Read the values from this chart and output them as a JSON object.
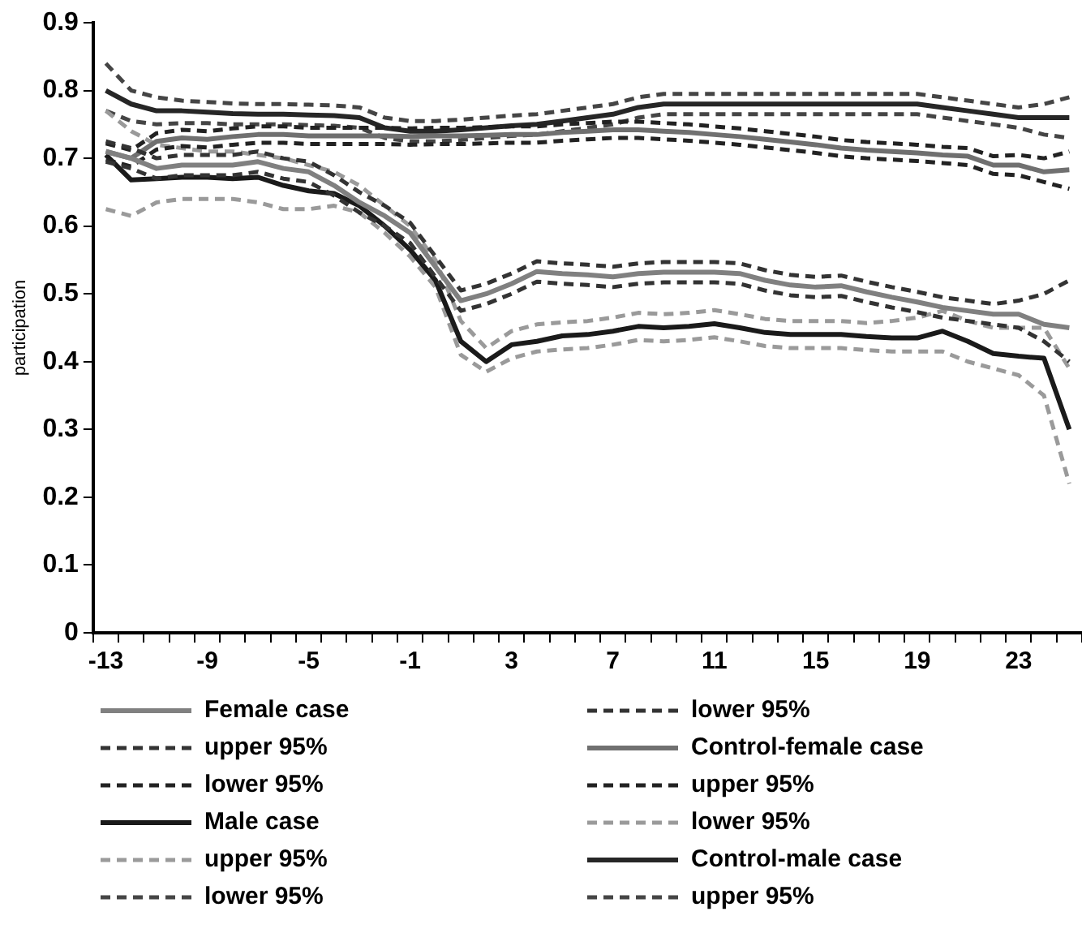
{
  "chart_data": {
    "type": "line",
    "ylabel": "participation",
    "categories": [
      "-13",
      null,
      null,
      null,
      "-9",
      null,
      null,
      null,
      "-5",
      null,
      null,
      null,
      "-1",
      null,
      null,
      null,
      "3",
      null,
      null,
      null,
      "7",
      null,
      null,
      null,
      "11",
      null,
      null,
      null,
      "15",
      null,
      null,
      null,
      "19",
      null,
      null,
      null,
      "23",
      null,
      null
    ],
    "ylim": [
      0,
      0.9
    ],
    "yticks": [
      0,
      0.1,
      0.2,
      0.3,
      0.4,
      0.5,
      0.6,
      0.7,
      0.8,
      0.9
    ],
    "grid": false,
    "legend": "bottom",
    "marker": "none",
    "series": [
      {
        "name": "Female case",
        "color": "#808080",
        "line_style": "solid",
        "values": [
          0.71,
          0.7,
          0.685,
          0.69,
          0.69,
          0.69,
          0.695,
          0.685,
          0.68,
          0.66,
          0.635,
          0.615,
          0.59,
          0.54,
          0.49,
          0.5,
          0.515,
          0.533,
          0.53,
          0.528,
          0.525,
          0.53,
          0.532,
          0.532,
          0.532,
          0.53,
          0.52,
          0.513,
          0.51,
          0.512,
          0.503,
          0.495,
          0.488,
          0.48,
          0.475,
          0.47,
          0.47,
          0.455,
          0.45
        ]
      },
      {
        "name": "lower 95%",
        "color": "#333333",
        "line_style": "dashed",
        "values": [
          0.695,
          0.685,
          0.67,
          0.675,
          0.675,
          0.675,
          0.68,
          0.67,
          0.665,
          0.645,
          0.62,
          0.6,
          0.575,
          0.525,
          0.475,
          0.485,
          0.5,
          0.518,
          0.515,
          0.513,
          0.51,
          0.515,
          0.517,
          0.517,
          0.517,
          0.515,
          0.505,
          0.498,
          0.495,
          0.497,
          0.488,
          0.48,
          0.473,
          0.465,
          0.46,
          0.455,
          0.45,
          0.43,
          0.4
        ]
      },
      {
        "name": "upper 95%",
        "color": "#333333",
        "line_style": "dashed",
        "values": [
          0.725,
          0.715,
          0.7,
          0.705,
          0.705,
          0.705,
          0.71,
          0.7,
          0.695,
          0.675,
          0.65,
          0.63,
          0.605,
          0.555,
          0.505,
          0.515,
          0.53,
          0.548,
          0.545,
          0.543,
          0.54,
          0.545,
          0.547,
          0.547,
          0.547,
          0.545,
          0.535,
          0.528,
          0.525,
          0.527,
          0.518,
          0.51,
          0.503,
          0.495,
          0.49,
          0.485,
          0.49,
          0.5,
          0.52
        ]
      },
      {
        "name": "Control-female case",
        "color": "#707070",
        "line_style": "solid",
        "values": [
          0.71,
          0.7,
          0.725,
          0.73,
          0.728,
          0.732,
          0.735,
          0.735,
          0.733,
          0.733,
          0.733,
          0.733,
          0.732,
          0.733,
          0.733,
          0.734,
          0.735,
          0.735,
          0.738,
          0.74,
          0.742,
          0.742,
          0.74,
          0.738,
          0.735,
          0.732,
          0.728,
          0.724,
          0.72,
          0.715,
          0.712,
          0.71,
          0.708,
          0.705,
          0.703,
          0.69,
          0.69,
          0.68,
          0.683
        ]
      },
      {
        "name": "lower 95%",
        "color": "#222222",
        "line_style": "dashed",
        "values": [
          0.698,
          0.688,
          0.713,
          0.718,
          0.716,
          0.72,
          0.723,
          0.723,
          0.721,
          0.721,
          0.721,
          0.721,
          0.72,
          0.721,
          0.721,
          0.722,
          0.723,
          0.723,
          0.726,
          0.728,
          0.73,
          0.73,
          0.728,
          0.726,
          0.723,
          0.72,
          0.716,
          0.712,
          0.708,
          0.703,
          0.7,
          0.698,
          0.696,
          0.693,
          0.69,
          0.677,
          0.675,
          0.665,
          0.655
        ]
      },
      {
        "name": "upper 95%",
        "color": "#222222",
        "line_style": "dashed",
        "values": [
          0.722,
          0.712,
          0.737,
          0.742,
          0.74,
          0.744,
          0.747,
          0.747,
          0.745,
          0.745,
          0.745,
          0.745,
          0.744,
          0.745,
          0.745,
          0.746,
          0.747,
          0.747,
          0.75,
          0.752,
          0.754,
          0.754,
          0.752,
          0.75,
          0.747,
          0.744,
          0.74,
          0.736,
          0.732,
          0.727,
          0.724,
          0.722,
          0.72,
          0.717,
          0.715,
          0.703,
          0.705,
          0.7,
          0.71
        ]
      },
      {
        "name": "Male case",
        "color": "#1a1a1a",
        "line_style": "solid",
        "values": [
          0.705,
          0.668,
          0.67,
          0.672,
          0.672,
          0.67,
          0.672,
          0.66,
          0.652,
          0.648,
          0.63,
          0.6,
          0.565,
          0.52,
          0.43,
          0.4,
          0.425,
          0.43,
          0.438,
          0.44,
          0.445,
          0.452,
          0.45,
          0.452,
          0.456,
          0.45,
          0.443,
          0.44,
          0.44,
          0.44,
          0.437,
          0.435,
          0.435,
          0.445,
          0.43,
          0.412,
          0.408,
          0.405,
          0.3
        ]
      },
      {
        "name": "lower 95%",
        "color": "#9a9a9a",
        "line_style": "dashed",
        "values": [
          0.625,
          0.615,
          0.635,
          0.64,
          0.64,
          0.64,
          0.635,
          0.625,
          0.625,
          0.63,
          0.62,
          0.59,
          0.555,
          0.51,
          0.41,
          0.385,
          0.405,
          0.415,
          0.418,
          0.42,
          0.425,
          0.432,
          0.43,
          0.432,
          0.436,
          0.43,
          0.423,
          0.42,
          0.42,
          0.42,
          0.417,
          0.415,
          0.415,
          0.415,
          0.4,
          0.39,
          0.38,
          0.35,
          0.22
        ]
      },
      {
        "name": "upper 95%",
        "color": "#9a9a9a",
        "line_style": "dashed",
        "values": [
          0.77,
          0.74,
          0.72,
          0.715,
          0.71,
          0.71,
          0.705,
          0.7,
          0.69,
          0.68,
          0.66,
          0.63,
          0.6,
          0.55,
          0.46,
          0.42,
          0.445,
          0.455,
          0.458,
          0.46,
          0.465,
          0.472,
          0.47,
          0.472,
          0.476,
          0.47,
          0.463,
          0.46,
          0.46,
          0.46,
          0.457,
          0.46,
          0.465,
          0.475,
          0.46,
          0.45,
          0.45,
          0.45,
          0.39
        ]
      },
      {
        "name": "Control-male case",
        "color": "#262626",
        "line_style": "solid",
        "values": [
          0.8,
          0.78,
          0.77,
          0.77,
          0.768,
          0.766,
          0.765,
          0.765,
          0.764,
          0.763,
          0.76,
          0.745,
          0.74,
          0.74,
          0.742,
          0.745,
          0.748,
          0.75,
          0.755,
          0.76,
          0.765,
          0.775,
          0.78,
          0.78,
          0.78,
          0.78,
          0.78,
          0.78,
          0.78,
          0.78,
          0.78,
          0.78,
          0.78,
          0.775,
          0.77,
          0.765,
          0.76,
          0.76,
          0.76
        ]
      },
      {
        "name": "lower 95%",
        "color": "#454545",
        "line_style": "dashed",
        "values": [
          0.77,
          0.755,
          0.75,
          0.752,
          0.752,
          0.75,
          0.75,
          0.75,
          0.749,
          0.748,
          0.745,
          0.73,
          0.725,
          0.725,
          0.727,
          0.73,
          0.733,
          0.735,
          0.74,
          0.745,
          0.75,
          0.76,
          0.765,
          0.765,
          0.765,
          0.765,
          0.765,
          0.765,
          0.765,
          0.765,
          0.765,
          0.765,
          0.765,
          0.76,
          0.755,
          0.75,
          0.745,
          0.735,
          0.73
        ]
      },
      {
        "name": "upper 95%",
        "color": "#454545",
        "line_style": "dashed",
        "values": [
          0.84,
          0.8,
          0.79,
          0.785,
          0.783,
          0.781,
          0.78,
          0.78,
          0.779,
          0.778,
          0.775,
          0.76,
          0.755,
          0.755,
          0.757,
          0.76,
          0.763,
          0.765,
          0.77,
          0.775,
          0.78,
          0.79,
          0.795,
          0.795,
          0.795,
          0.795,
          0.795,
          0.795,
          0.795,
          0.795,
          0.795,
          0.795,
          0.795,
          0.79,
          0.785,
          0.78,
          0.775,
          0.78,
          0.79
        ]
      }
    ]
  }
}
